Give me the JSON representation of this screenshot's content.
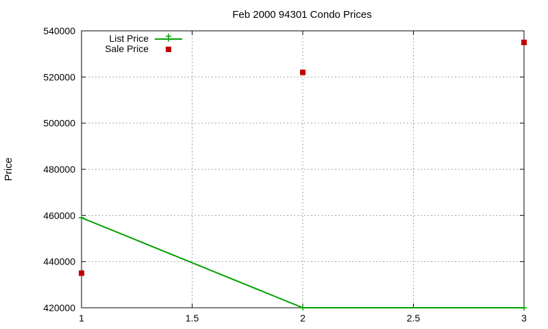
{
  "chart_data": {
    "type": "line",
    "title": "Feb 2000 94301 Condo Prices",
    "xlabel": "",
    "ylabel": "Price",
    "xlim": [
      1,
      3
    ],
    "ylim": [
      420000,
      540000
    ],
    "x_ticks": [
      "1",
      "1.5",
      "2",
      "2.5",
      "3"
    ],
    "y_ticks": [
      "420000",
      "440000",
      "460000",
      "480000",
      "500000",
      "520000",
      "540000"
    ],
    "grid": true,
    "legend_position": "top-left",
    "series": [
      {
        "name": "List Price",
        "style": "line with plus markers",
        "color": "#00a000",
        "x": [
          1,
          2,
          3
        ],
        "values": [
          459000,
          420000,
          420000
        ]
      },
      {
        "name": "Sale Price",
        "style": "square markers",
        "color": "#c00000",
        "x": [
          1,
          2,
          3
        ],
        "values": [
          435000,
          522000,
          535000
        ]
      }
    ]
  }
}
